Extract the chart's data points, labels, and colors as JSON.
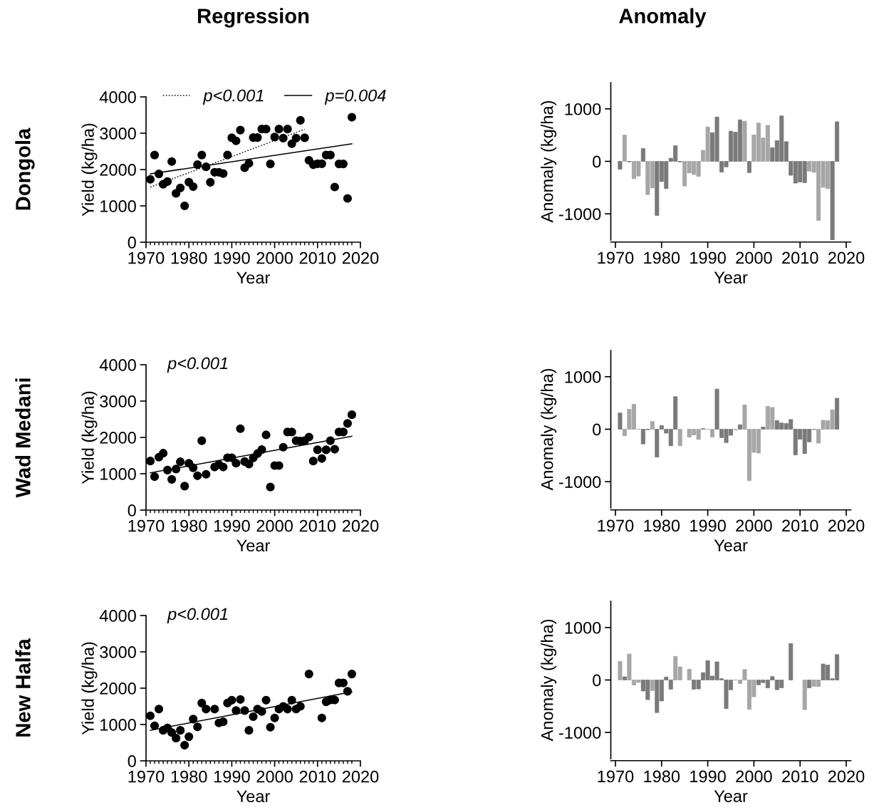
{
  "chart_data": [
    {
      "type": "scatter",
      "title": "Regression",
      "annotations": [
        "Dongola"
      ],
      "xlabel": "Year",
      "ylabel": "Yield (kg/ha)",
      "xlim": [
        1970,
        2020
      ],
      "xticks": [
        1970,
        1980,
        1990,
        2000,
        2010,
        2020
      ],
      "ylim": [
        0,
        4000
      ],
      "yticks": [
        0,
        1000,
        2000,
        3000,
        4000
      ],
      "marker": "circle",
      "legend": "top",
      "x": [
        1971,
        1972,
        1973,
        1974,
        1975,
        1976,
        1977,
        1978,
        1979,
        1980,
        1981,
        1982,
        1983,
        1984,
        1985,
        1986,
        1987,
        1988,
        1989,
        1990,
        1991,
        1992,
        1993,
        1994,
        1995,
        1996,
        1997,
        1998,
        1999,
        2000,
        2001,
        2002,
        2003,
        2004,
        2005,
        2006,
        2007,
        2008,
        2009,
        2010,
        2011,
        2012,
        2013,
        2014,
        2015,
        2016,
        2017,
        2018
      ],
      "series": [
        {
          "color": "#000000",
          "values": [
            1730,
            2400,
            1880,
            1595,
            1670,
            2220,
            1345,
            1495,
            1000,
            1655,
            1530,
            2135,
            2400,
            2075,
            1650,
            1925,
            1925,
            1890,
            2400,
            2875,
            2790,
            3085,
            2050,
            2170,
            2880,
            2880,
            3115,
            3115,
            2155,
            2895,
            3115,
            2865,
            3115,
            2710,
            2865,
            3355,
            2875,
            2255,
            2135,
            2160,
            2160,
            2400,
            2400,
            1520,
            2155,
            2155,
            1205,
            3440
          ]
        },
        {
          "type": "line",
          "name": "p<0.001",
          "line_style": "dotted",
          "marker": "none",
          "color": "#000000",
          "x": [
            1971,
            2007
          ],
          "values": [
            1515,
            3110
          ]
        },
        {
          "type": "line",
          "name": "p=0.004",
          "line_style": "solid",
          "marker": "none",
          "color": "#000000",
          "x": [
            1971,
            2018
          ],
          "values": [
            1880,
            2710
          ]
        }
      ]
    },
    {
      "type": "bar",
      "title": "Anomaly",
      "xlabel": "Year",
      "ylabel": "Anomaly (kg/ha)",
      "xlim": [
        1969,
        2021
      ],
      "xticks": [
        1970,
        1980,
        1990,
        2000,
        2010,
        2020
      ],
      "ylim": [
        -1500,
        1500
      ],
      "yticks": [
        -1000,
        0,
        1000
      ],
      "x": [
        1971,
        1972,
        1973,
        1974,
        1975,
        1976,
        1977,
        1978,
        1979,
        1980,
        1981,
        1982,
        1983,
        1984,
        1985,
        1986,
        1987,
        1988,
        1989,
        1990,
        1991,
        1992,
        1993,
        1994,
        1995,
        1996,
        1997,
        1998,
        1999,
        2000,
        2001,
        2002,
        2003,
        2004,
        2005,
        2006,
        2007,
        2008,
        2009,
        2010,
        2011,
        2012,
        2013,
        2014,
        2015,
        2016,
        2017,
        2018
      ],
      "values": [
        -150,
        500,
        -10,
        -330,
        -280,
        245,
        -635,
        -505,
        -1030,
        -385,
        -520,
        60,
        300,
        -10,
        -470,
        -220,
        -250,
        -285,
        210,
        655,
        545,
        845,
        -205,
        -105,
        575,
        555,
        790,
        765,
        -215,
        505,
        730,
        445,
        685,
        260,
        395,
        865,
        375,
        -265,
        -415,
        -395,
        -405,
        -185,
        -210,
        -1125,
        -495,
        -520,
        -1500,
        755
      ],
      "colors": [
        "#7a7a7a",
        "#a6a6a6",
        "#7a7a7a",
        "#a6a6a6",
        "#a6a6a6",
        "#7a7a7a",
        "#a6a6a6",
        "#a6a6a6",
        "#7a7a7a",
        "#7a7a7a",
        "#7a7a7a",
        "#7a7a7a",
        "#7a7a7a",
        "#7a7a7a",
        "#a6a6a6",
        "#a6a6a6",
        "#a6a6a6",
        "#a6a6a6",
        "#a6a6a6",
        "#a6a6a6",
        "#7a7a7a",
        "#7a7a7a",
        "#7a7a7a",
        "#7a7a7a",
        "#7a7a7a",
        "#7a7a7a",
        "#7a7a7a",
        "#a6a6a6",
        "#7a7a7a",
        "#a6a6a6",
        "#a6a6a6",
        "#a6a6a6",
        "#a6a6a6",
        "#7a7a7a",
        "#7a7a7a",
        "#7a7a7a",
        "#7a7a7a",
        "#7a7a7a",
        "#7a7a7a",
        "#7a7a7a",
        "#7a7a7a",
        "#a6a6a6",
        "#a6a6a6",
        "#a6a6a6",
        "#a6a6a6",
        "#a6a6a6",
        "#7a7a7a",
        "#7a7a7a"
      ]
    },
    {
      "type": "scatter",
      "annotations": [
        "Wad Medani",
        "p<0.001"
      ],
      "xlabel": "Year",
      "ylabel": "Yield (kg/ha)",
      "xlim": [
        1970,
        2020
      ],
      "xticks": [
        1970,
        1980,
        1990,
        2000,
        2010,
        2020
      ],
      "ylim": [
        0,
        4000
      ],
      "yticks": [
        0,
        1000,
        2000,
        3000,
        4000
      ],
      "marker": "circle",
      "x": [
        1971,
        1972,
        1973,
        1974,
        1975,
        1976,
        1977,
        1978,
        1979,
        1980,
        1981,
        1982,
        1983,
        1984,
        1985,
        1986,
        1987,
        1988,
        1989,
        1990,
        1991,
        1992,
        1993,
        1994,
        1995,
        1996,
        1997,
        1998,
        1999,
        2000,
        2001,
        2002,
        2003,
        2004,
        2005,
        2006,
        2007,
        2008,
        2009,
        2010,
        2011,
        2012,
        2013,
        2014,
        2015,
        2016,
        2017,
        2018
      ],
      "series": [
        {
          "color": "#000000",
          "values": [
            1350,
            920,
            1455,
            1565,
            1100,
            845,
            1130,
            1330,
            660,
            1290,
            1165,
            945,
            1910,
            985,
            null,
            1185,
            1255,
            1185,
            1440,
            1440,
            1290,
            2240,
            1335,
            1265,
            1435,
            1555,
            1665,
            2070,
            635,
            1225,
            1225,
            1730,
            2150,
            2150,
            1910,
            1900,
            1910,
            2010,
            1350,
            1660,
            1420,
            1660,
            1910,
            1675,
            2150,
            2150,
            2385,
            2625
          ]
        },
        {
          "type": "line",
          "line_style": "solid",
          "marker": "none",
          "color": "#000000",
          "x": [
            1971,
            2018
          ],
          "values": [
            1025,
            2030
          ]
        }
      ]
    },
    {
      "type": "bar",
      "xlabel": "Year",
      "ylabel": "Anomaly (kg/ha)",
      "xlim": [
        1969,
        2021
      ],
      "xticks": [
        1970,
        1980,
        1990,
        2000,
        2010,
        2020
      ],
      "ylim": [
        -1500,
        1500
      ],
      "yticks": [
        -1000,
        0,
        1000
      ],
      "x": [
        1971,
        1972,
        1973,
        1974,
        1975,
        1976,
        1977,
        1978,
        1979,
        1980,
        1981,
        1982,
        1983,
        1984,
        1985,
        1986,
        1987,
        1988,
        1989,
        1990,
        1991,
        1992,
        1993,
        1994,
        1995,
        1996,
        1997,
        1998,
        1999,
        2000,
        2001,
        2002,
        2003,
        2004,
        2005,
        2006,
        2007,
        2008,
        2009,
        2010,
        2011,
        2012,
        2013,
        2014,
        2015,
        2016,
        2017,
        2018
      ],
      "values": [
        310,
        -125,
        380,
        475,
        0,
        -280,
        -10,
        150,
        -530,
        70,
        -75,
        -315,
        620,
        -315,
        null,
        -150,
        -110,
        -195,
        10,
        0,
        -150,
        765,
        -160,
        -255,
        -115,
        -10,
        85,
        460,
        -980,
        -440,
        -455,
        40,
        435,
        415,
        165,
        120,
        110,
        185,
        -490,
        -190,
        -465,
        -240,
        -5,
        -265,
        170,
        165,
        370,
        590
      ],
      "colors": [
        "#7a7a7a",
        "#a6a6a6",
        "#a6a6a6",
        "#a6a6a6",
        "#a6a6a6",
        "#7a7a7a",
        "#7a7a7a",
        "#a6a6a6",
        "#7a7a7a",
        "#7a7a7a",
        "#7a7a7a",
        "#7a7a7a",
        "#7a7a7a",
        "#a6a6a6",
        "#a6a6a6",
        "#a6a6a6",
        "#a6a6a6",
        "#a6a6a6",
        "#7a7a7a",
        "#a6a6a6",
        "#a6a6a6",
        "#7a7a7a",
        "#7a7a7a",
        "#7a7a7a",
        "#7a7a7a",
        "#a6a6a6",
        "#7a7a7a",
        "#a6a6a6",
        "#a6a6a6",
        "#a6a6a6",
        "#a6a6a6",
        "#7a7a7a",
        "#a6a6a6",
        "#a6a6a6",
        "#7a7a7a",
        "#7a7a7a",
        "#7a7a7a",
        "#7a7a7a",
        "#7a7a7a",
        "#7a7a7a",
        "#7a7a7a",
        "#7a7a7a",
        "#7a7a7a",
        "#a6a6a6",
        "#a6a6a6",
        "#a6a6a6",
        "#a6a6a6",
        "#7a7a7a"
      ]
    },
    {
      "type": "scatter",
      "annotations": [
        "New Halfa",
        "p<0.001"
      ],
      "xlabel": "Year",
      "ylabel": "Yield (kg/ha)",
      "xlim": [
        1970,
        2020
      ],
      "xticks": [
        1970,
        1980,
        1990,
        2000,
        2010,
        2020
      ],
      "ylim": [
        0,
        4000
      ],
      "yticks": [
        0,
        1000,
        2000,
        3000,
        4000
      ],
      "marker": "circle",
      "x": [
        1971,
        1972,
        1973,
        1974,
        1975,
        1976,
        1977,
        1978,
        1979,
        1980,
        1981,
        1982,
        1983,
        1984,
        1985,
        1986,
        1987,
        1988,
        1989,
        1990,
        1991,
        1992,
        1993,
        1994,
        1995,
        1996,
        1997,
        1998,
        1999,
        2000,
        2001,
        2002,
        2003,
        2004,
        2005,
        2006,
        2007,
        2008,
        2009,
        2010,
        2011,
        2012,
        2013,
        2014,
        2015,
        2016,
        2017,
        2018
      ],
      "series": [
        {
          "color": "#000000",
          "values": [
            1240,
            965,
            1425,
            840,
            905,
            780,
            625,
            840,
            430,
            665,
            1150,
            935,
            1590,
            1425,
            null,
            1425,
            1045,
            1075,
            1590,
            1670,
            1385,
            1690,
            1385,
            840,
            1215,
            1425,
            1360,
            1670,
            925,
            1180,
            1425,
            1500,
            1425,
            1670,
            1425,
            1500,
            null,
            2390,
            null,
            null,
            1180,
            1625,
            1675,
            1675,
            2145,
            2145,
            1915,
            2390
          ]
        },
        {
          "type": "line",
          "line_style": "solid",
          "marker": "none",
          "color": "#000000",
          "x": [
            1971,
            2018
          ],
          "values": [
            840,
            1900
          ]
        }
      ]
    },
    {
      "type": "bar",
      "xlabel": "Year",
      "ylabel": "Anomaly (kg/ha)",
      "xlim": [
        1969,
        2021
      ],
      "xticks": [
        1970,
        1980,
        1990,
        2000,
        2010,
        2020
      ],
      "ylim": [
        -1500,
        1500
      ],
      "yticks": [
        -1000,
        0,
        1000
      ],
      "x": [
        1971,
        1972,
        1973,
        1974,
        1975,
        1976,
        1977,
        1978,
        1979,
        1980,
        1981,
        1982,
        1983,
        1984,
        1985,
        1986,
        1987,
        1988,
        1989,
        1990,
        1991,
        1992,
        1993,
        1994,
        1995,
        1996,
        1997,
        1998,
        1999,
        2000,
        2001,
        2002,
        2003,
        2004,
        2005,
        2006,
        2007,
        2008,
        2009,
        2010,
        2011,
        2012,
        2013,
        2014,
        2015,
        2016,
        2017,
        2018
      ],
      "values": [
        355,
        60,
        495,
        -95,
        -45,
        -210,
        -375,
        -200,
        -620,
        -400,
        55,
        -175,
        450,
        250,
        null,
        205,
        -175,
        -170,
        140,
        370,
        75,
        345,
        25,
        -545,
        -185,
        0,
        -70,
        200,
        -560,
        -320,
        -90,
        -50,
        -150,
        65,
        -185,
        -150,
        null,
        695,
        null,
        null,
        -565,
        -150,
        -120,
        -125,
        305,
        285,
        25,
        485
      ],
      "colors": [
        "#a6a6a6",
        "#7a7a7a",
        "#a6a6a6",
        "#a6a6a6",
        "#a6a6a6",
        "#7a7a7a",
        "#7a7a7a",
        "#a6a6a6",
        "#7a7a7a",
        "#7a7a7a",
        "#7a7a7a",
        "#7a7a7a",
        "#a6a6a6",
        "#a6a6a6",
        "#a6a6a6",
        "#a6a6a6",
        "#7a7a7a",
        "#7a7a7a",
        "#7a7a7a",
        "#7a7a7a",
        "#7a7a7a",
        "#7a7a7a",
        "#7a7a7a",
        "#7a7a7a",
        "#7a7a7a",
        "#a6a6a6",
        "#a6a6a6",
        "#a6a6a6",
        "#a6a6a6",
        "#a6a6a6",
        "#7a7a7a",
        "#7a7a7a",
        "#7a7a7a",
        "#7a7a7a",
        "#7a7a7a",
        "#7a7a7a",
        "#a6a6a6",
        "#7a7a7a",
        "#a6a6a6",
        "#a6a6a6",
        "#a6a6a6",
        "#7a7a7a",
        "#a6a6a6",
        "#a6a6a6",
        "#7a7a7a",
        "#7a7a7a",
        "#7a7a7a",
        "#7a7a7a"
      ]
    }
  ]
}
